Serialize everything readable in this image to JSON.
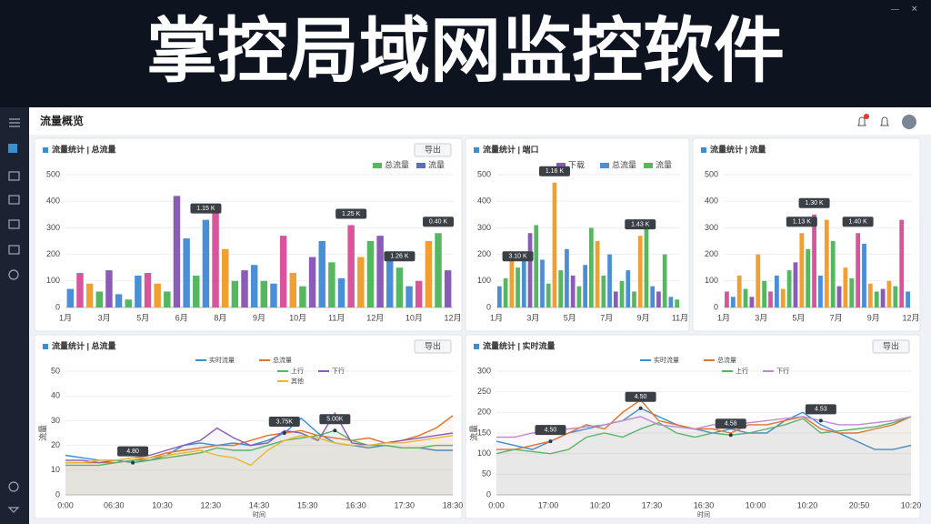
{
  "banner_title": "掌控局域网监控软件",
  "page_title": "流量概览",
  "panels": [
    {
      "type": "bar",
      "title": "流量统计 | 总流量",
      "button": "导出",
      "legend": [
        {
          "name": "流量",
          "color": "#5a6fb8"
        },
        {
          "name": "总流量",
          "color": "#55b860"
        }
      ],
      "ylim": [
        0,
        500
      ],
      "yticks": [
        0,
        100,
        200,
        300,
        400,
        500
      ],
      "categories": [
        "1月",
        "3月",
        "5月",
        "6月",
        "8月",
        "9月",
        "10月",
        "11月",
        "12月",
        "10月",
        "12月"
      ],
      "values": [
        70,
        130,
        90,
        60,
        140,
        50,
        30,
        120,
        130,
        90,
        60,
        420,
        260,
        120,
        330,
        380,
        220,
        100,
        140,
        160,
        100,
        90,
        270,
        130,
        80,
        190,
        250,
        170,
        110,
        310,
        190,
        250,
        270,
        200,
        150,
        80,
        100,
        250,
        280,
        140
      ],
      "colors": [
        "#4a8fd6",
        "#d9559b",
        "#f0a030",
        "#55b860",
        "#8a5cb8",
        "#4a8fd6",
        "#55b860"
      ],
      "callouts": [
        "1.15 K",
        "1.25 K",
        "1.26 K",
        "0.40 K"
      ]
    },
    {
      "type": "bar",
      "title": "流量统计 | 端口",
      "legend": [
        {
          "name": "流量",
          "color": "#55b860"
        },
        {
          "name": "总流量",
          "color": "#4a8fd6"
        },
        {
          "name": "下载",
          "color": "#8a5cb8"
        }
      ],
      "ylim": [
        0,
        500
      ],
      "yticks": [
        0,
        100,
        200,
        300,
        400,
        500
      ],
      "categories": [
        "1月",
        "3月",
        "5月",
        "7月",
        "9月",
        "11月"
      ],
      "values": [
        80,
        110,
        180,
        150,
        210,
        280,
        310,
        180,
        90,
        470,
        140,
        220,
        120,
        80,
        160,
        300,
        250,
        120,
        200,
        60,
        100,
        140,
        60,
        270,
        320,
        80,
        60,
        200,
        40,
        30
      ],
      "colors": [
        "#4a8fd6",
        "#55b860",
        "#f0a030",
        "#55b860",
        "#4a8fd6",
        "#8a5cb8",
        "#55b860"
      ],
      "callouts": [
        "1.16 K",
        "1.43 K",
        "3.10 K"
      ]
    },
    {
      "type": "bar",
      "title": "流量统计 | 流量",
      "ylim": [
        0,
        500
      ],
      "yticks": [
        0,
        100,
        200,
        300,
        400,
        500
      ],
      "categories": [
        "1月",
        "3月",
        "5月",
        "7月",
        "9月",
        "12月"
      ],
      "values": [
        60,
        40,
        120,
        70,
        40,
        200,
        100,
        60,
        120,
        70,
        140,
        170,
        280,
        220,
        350,
        120,
        330,
        250,
        80,
        150,
        110,
        280,
        240,
        90,
        60,
        70,
        100,
        80,
        330,
        60
      ],
      "colors": [
        "#d9559b",
        "#4a8fd6",
        "#f0a030",
        "#55b860",
        "#8a5cb8",
        "#f0a030",
        "#55b860"
      ],
      "callouts": [
        "1.13 K",
        "1.30 K",
        "1.40 K"
      ]
    },
    {
      "type": "line",
      "title": "流量统计 | 总流量",
      "button": "导出",
      "y_label": "流量",
      "x_label": "时间",
      "ylim": [
        0,
        50
      ],
      "yticks": [
        0,
        10,
        20,
        30,
        40,
        50
      ],
      "categories": [
        "0:00",
        "06:30",
        "10:30",
        "12:30",
        "14:30",
        "15:30",
        "16:30",
        "17:30",
        "18:30"
      ],
      "series": [
        {
          "name": "实时流量",
          "color": "#3a8fd0",
          "values": [
            16,
            15,
            14,
            14,
            13,
            14,
            16,
            20,
            21,
            20,
            21,
            20,
            22,
            25,
            31,
            25,
            21,
            20,
            19,
            20,
            19,
            19,
            18,
            18
          ]
        },
        {
          "name": "总流量",
          "color": "#e0742a",
          "values": [
            13,
            13,
            13,
            13,
            14,
            15,
            17,
            18,
            19,
            20,
            20,
            22,
            24,
            25,
            26,
            24,
            23,
            22,
            23,
            21,
            22,
            24,
            27,
            32
          ]
        },
        {
          "name": "上行",
          "color": "#55b860",
          "values": [
            12,
            12,
            12,
            13,
            14,
            14,
            15,
            16,
            17,
            19,
            18,
            18,
            20,
            22,
            23,
            24,
            26,
            22,
            20,
            20,
            19,
            19,
            20,
            20
          ]
        },
        {
          "name": "下行",
          "color": "#8a5cb8",
          "values": [
            14,
            14,
            13,
            14,
            15,
            16,
            18,
            20,
            22,
            27,
            23,
            20,
            21,
            26,
            25,
            22,
            33,
            21,
            20,
            21,
            22,
            23,
            24,
            25
          ]
        },
        {
          "name": "其他",
          "color": "#e8b830",
          "values": [
            13,
            13,
            14,
            14,
            15,
            15,
            16,
            17,
            18,
            16,
            15,
            12,
            18,
            22,
            24,
            23,
            21,
            20,
            20,
            21,
            21,
            22,
            23,
            24
          ]
        }
      ],
      "callouts": [
        "4.80",
        "3.75K",
        "5.00K"
      ]
    },
    {
      "type": "line",
      "title": "流量统计 | 实时流量",
      "button": "导出",
      "y_label": "流量",
      "x_label": "时间",
      "ylim": [
        0,
        300
      ],
      "yticks": [
        0,
        50,
        100,
        150,
        200,
        250,
        300
      ],
      "categories": [
        "0:00",
        "17:00",
        "10:20",
        "17:30",
        "16:30",
        "10:00",
        "10:20",
        "20:50",
        "10:20"
      ],
      "series": [
        {
          "name": "实时流量",
          "color": "#3a8fd0",
          "values": [
            130,
            120,
            110,
            130,
            150,
            160,
            170,
            180,
            210,
            190,
            170,
            160,
            150,
            160,
            150,
            150,
            180,
            200,
            170,
            150,
            130,
            110,
            110,
            120
          ]
        },
        {
          "name": "总流量",
          "color": "#e0742a",
          "values": [
            110,
            110,
            120,
            130,
            150,
            170,
            160,
            200,
            230,
            180,
            170,
            160,
            160,
            150,
            170,
            170,
            180,
            190,
            160,
            150,
            150,
            160,
            170,
            190
          ]
        },
        {
          "name": "上行",
          "color": "#55b860",
          "values": [
            100,
            110,
            105,
            100,
            110,
            140,
            150,
            140,
            160,
            175,
            150,
            140,
            150,
            145,
            150,
            160,
            170,
            185,
            150,
            155,
            160,
            165,
            175,
            190
          ]
        },
        {
          "name": "下行",
          "color": "#c08ad0",
          "values": [
            140,
            140,
            150,
            155,
            160,
            165,
            170,
            180,
            190,
            170,
            165,
            160,
            170,
            170,
            175,
            180,
            185,
            190,
            180,
            170,
            170,
            175,
            180,
            190
          ]
        }
      ],
      "callouts": [
        "4.50",
        "4.50",
        "4.58",
        "4.53"
      ]
    }
  ]
}
